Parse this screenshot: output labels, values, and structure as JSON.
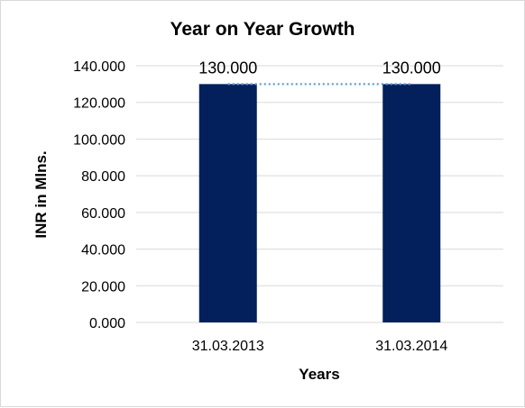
{
  "chart_data": {
    "type": "bar",
    "title": "Year on Year Growth",
    "xlabel": "Years",
    "ylabel": "INR in Mlns.",
    "categories": [
      "31.03.2013",
      "31.03.2014"
    ],
    "values": [
      130,
      130
    ],
    "data_labels": [
      "130.000",
      "130.000"
    ],
    "ylim": [
      0,
      140
    ],
    "y_ticks": [
      0,
      20,
      40,
      60,
      80,
      100,
      120,
      140
    ],
    "y_tick_labels": [
      "0.000",
      "20.000",
      "40.000",
      "60.000",
      "80.000",
      "100.000",
      "120.000",
      "140.000"
    ],
    "grid": true,
    "legend": "none",
    "trendline": "dotted-linear",
    "colors": {
      "bar": "#03205C",
      "trendline": "#5B9BD5",
      "grid": "#D9D9D9"
    }
  }
}
